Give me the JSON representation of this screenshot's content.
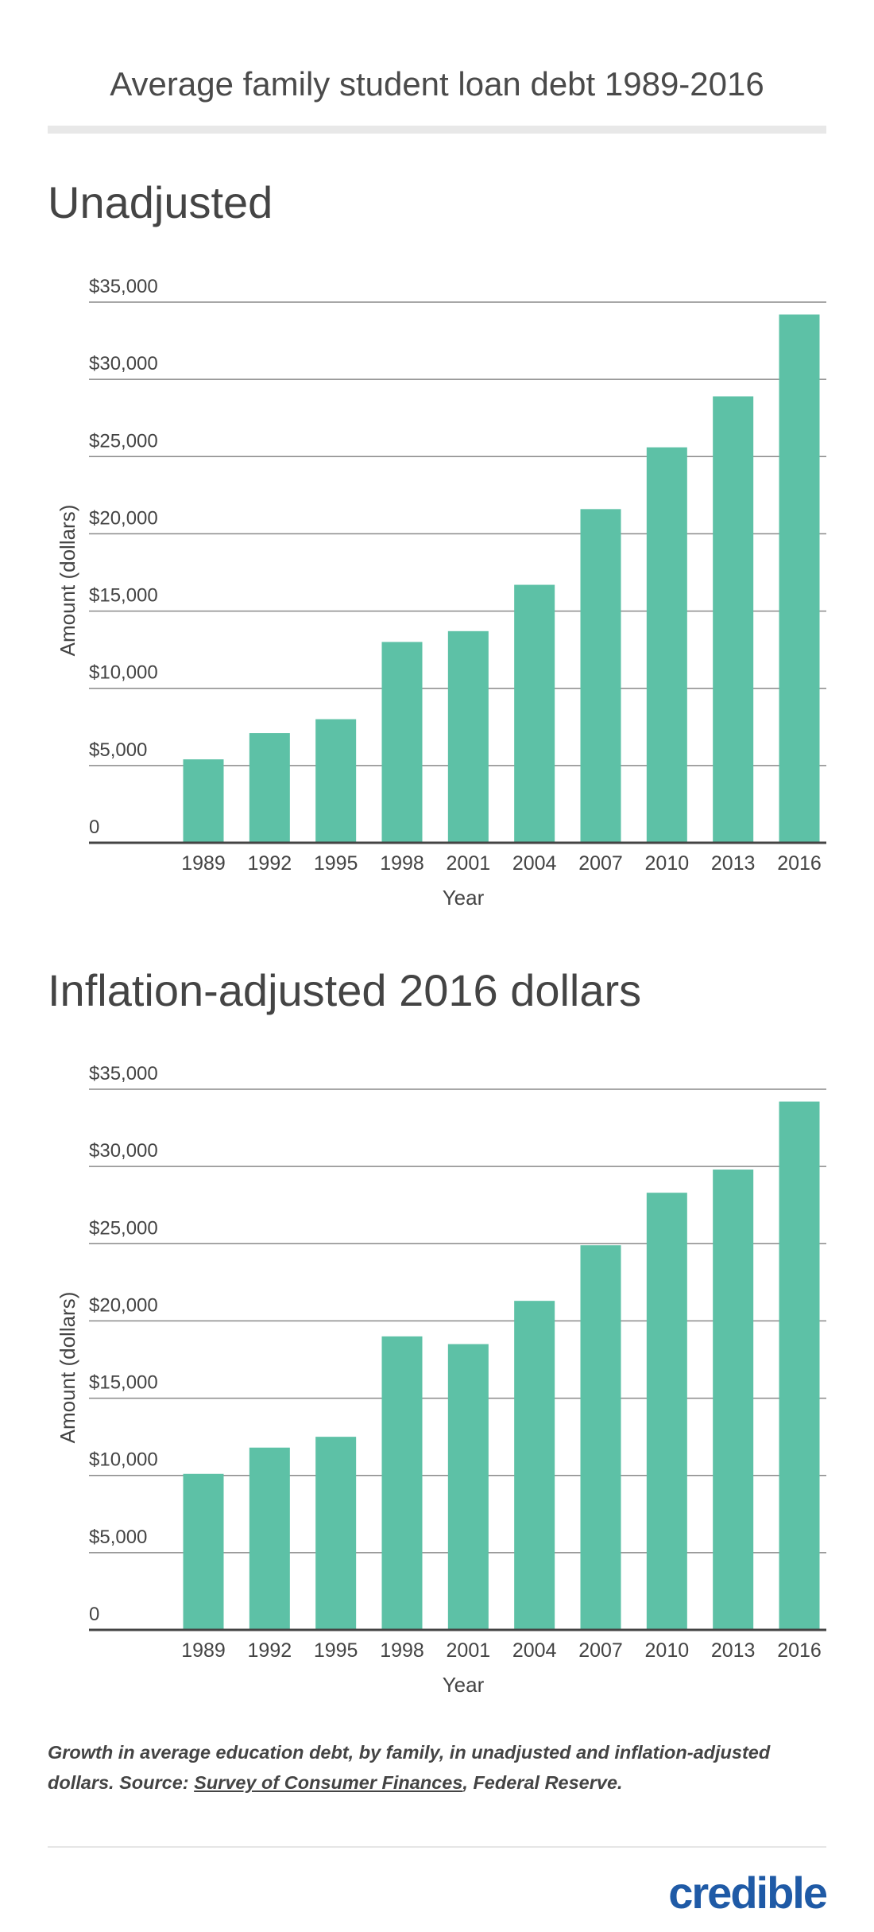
{
  "header": {
    "title": "Average family student loan debt 1989-2016"
  },
  "chart_data": [
    {
      "type": "bar",
      "title": "Unadjusted",
      "xlabel": "Year",
      "ylabel": "Amount (dollars)",
      "categories": [
        "1989",
        "1992",
        "1995",
        "1998",
        "2001",
        "2004",
        "2007",
        "2010",
        "2013",
        "2016"
      ],
      "values": [
        5400,
        7100,
        8000,
        13000,
        13700,
        16700,
        21600,
        25600,
        28900,
        34200
      ],
      "ylim": [
        0,
        35000
      ],
      "yticks": [
        0,
        5000,
        10000,
        15000,
        20000,
        25000,
        30000,
        35000
      ],
      "yticklabels": [
        "0",
        "$5,000",
        "$10,000",
        "$15,000",
        "$20,000",
        "$25,000",
        "$30,000",
        "$35,000"
      ],
      "grid": true,
      "bar_color": "#5dc1a6"
    },
    {
      "type": "bar",
      "title": "Inflation-adjusted 2016 dollars",
      "xlabel": "Year",
      "ylabel": "Amount (dollars)",
      "categories": [
        "1989",
        "1992",
        "1995",
        "1998",
        "2001",
        "2004",
        "2007",
        "2010",
        "2013",
        "2016"
      ],
      "values": [
        10100,
        11800,
        12500,
        19000,
        18500,
        21300,
        24900,
        28300,
        29800,
        34200
      ],
      "ylim": [
        0,
        35000
      ],
      "yticks": [
        0,
        5000,
        10000,
        15000,
        20000,
        25000,
        30000,
        35000
      ],
      "yticklabels": [
        "0",
        "$5,000",
        "$10,000",
        "$15,000",
        "$20,000",
        "$25,000",
        "$30,000",
        "$35,000"
      ],
      "grid": true,
      "bar_color": "#5dc1a6"
    }
  ],
  "caption": {
    "before": "Growth in average education debt, by family, in unadjusted and inflation-adjusted dollars. Source: ",
    "link": "Survey of Consumer Finances",
    "after": ", Federal Reserve."
  },
  "footer": {
    "logo": "credible"
  }
}
